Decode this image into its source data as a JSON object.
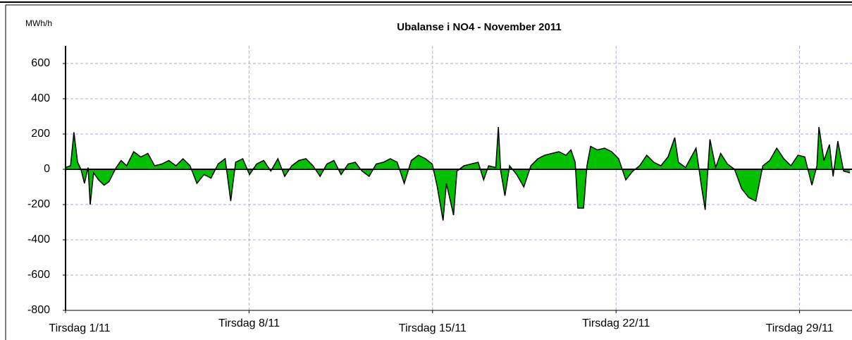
{
  "chart_data": {
    "type": "area",
    "title": "Ubalanse i NO4 - November 2011",
    "y_label": "MWh/h",
    "xlim": [
      1,
      31
    ],
    "ylim": [
      -800,
      700
    ],
    "xticks": [
      {
        "value": 1,
        "label": "Tirsdag 1/11"
      },
      {
        "value": 8,
        "label": "Tirsdag 8/11"
      },
      {
        "value": 15,
        "label": "Tirsdag 15/11"
      },
      {
        "value": 22,
        "label": "Tirsdag 22/11"
      },
      {
        "value": 29,
        "label": "Tirsdag 29/11"
      }
    ],
    "yticks": [
      -800,
      -600,
      -400,
      -200,
      0,
      200,
      400,
      600
    ],
    "grid": true,
    "color": "#00c000",
    "line_color": "#000000",
    "x": [
      1,
      1.19,
      1.32,
      1.46,
      1.59,
      1.72,
      1.86,
      1.94,
      2.07,
      2.26,
      2.47,
      2.66,
      2.93,
      3.12,
      3.33,
      3.6,
      3.87,
      4.14,
      4.4,
      4.67,
      4.94,
      5.21,
      5.48,
      5.75,
      6.01,
      6.28,
      6.55,
      6.82,
      7.09,
      7.3,
      7.49,
      7.76,
      8.02,
      8.29,
      8.56,
      8.83,
      9.1,
      9.36,
      9.63,
      9.9,
      10.17,
      10.44,
      10.71,
      10.97,
      11.24,
      11.51,
      11.78,
      12.05,
      12.31,
      12.58,
      12.85,
      13.12,
      13.39,
      13.65,
      13.92,
      14.19,
      14.46,
      14.73,
      14.99,
      15.18,
      15.4,
      15.53,
      15.8,
      15.93,
      16.2,
      16.47,
      16.74,
      16.95,
      17.14,
      17.41,
      17.51,
      17.6,
      17.76,
      17.94,
      18.21,
      18.48,
      18.75,
      19.02,
      19.28,
      19.55,
      19.82,
      20.09,
      20.28,
      20.44,
      20.54,
      20.76,
      20.89,
      21.03,
      21.29,
      21.56,
      21.83,
      22.1,
      22.37,
      22.64,
      22.9,
      23.17,
      23.44,
      23.71,
      23.98,
      24.24,
      24.38,
      24.65,
      25.05,
      25.26,
      25.4,
      25.58,
      25.8,
      25.99,
      26.25,
      26.52,
      26.79,
      27.06,
      27.33,
      27.6,
      27.86,
      28.13,
      28.4,
      28.67,
      28.94,
      29.2,
      29.47,
      29.66,
      29.74,
      29.93,
      30.14,
      30.28,
      30.46,
      30.68,
      30.92
    ],
    "values": [
      10,
      20,
      210,
      40,
      0,
      -80,
      10,
      -200,
      -20,
      -60,
      -90,
      -70,
      10,
      50,
      20,
      100,
      70,
      90,
      20,
      30,
      50,
      20,
      60,
      20,
      -80,
      -30,
      -50,
      30,
      60,
      -180,
      40,
      60,
      -30,
      30,
      50,
      -10,
      60,
      -40,
      20,
      50,
      60,
      20,
      -40,
      30,
      50,
      -30,
      30,
      40,
      -10,
      -40,
      30,
      40,
      60,
      40,
      -80,
      50,
      80,
      60,
      30,
      -100,
      -290,
      -80,
      -260,
      -10,
      20,
      30,
      40,
      -60,
      20,
      10,
      240,
      -10,
      -150,
      20,
      -30,
      -100,
      20,
      60,
      80,
      90,
      100,
      80,
      110,
      40,
      -220,
      -220,
      20,
      130,
      110,
      120,
      100,
      60,
      -60,
      -10,
      20,
      80,
      40,
      20,
      70,
      180,
      40,
      10,
      120,
      -100,
      -230,
      170,
      10,
      90,
      30,
      0,
      -110,
      -160,
      -180,
      20,
      50,
      120,
      60,
      20,
      80,
      70,
      -90,
      20,
      240,
      50,
      140,
      -40,
      160,
      -10,
      -20
    ]
  }
}
